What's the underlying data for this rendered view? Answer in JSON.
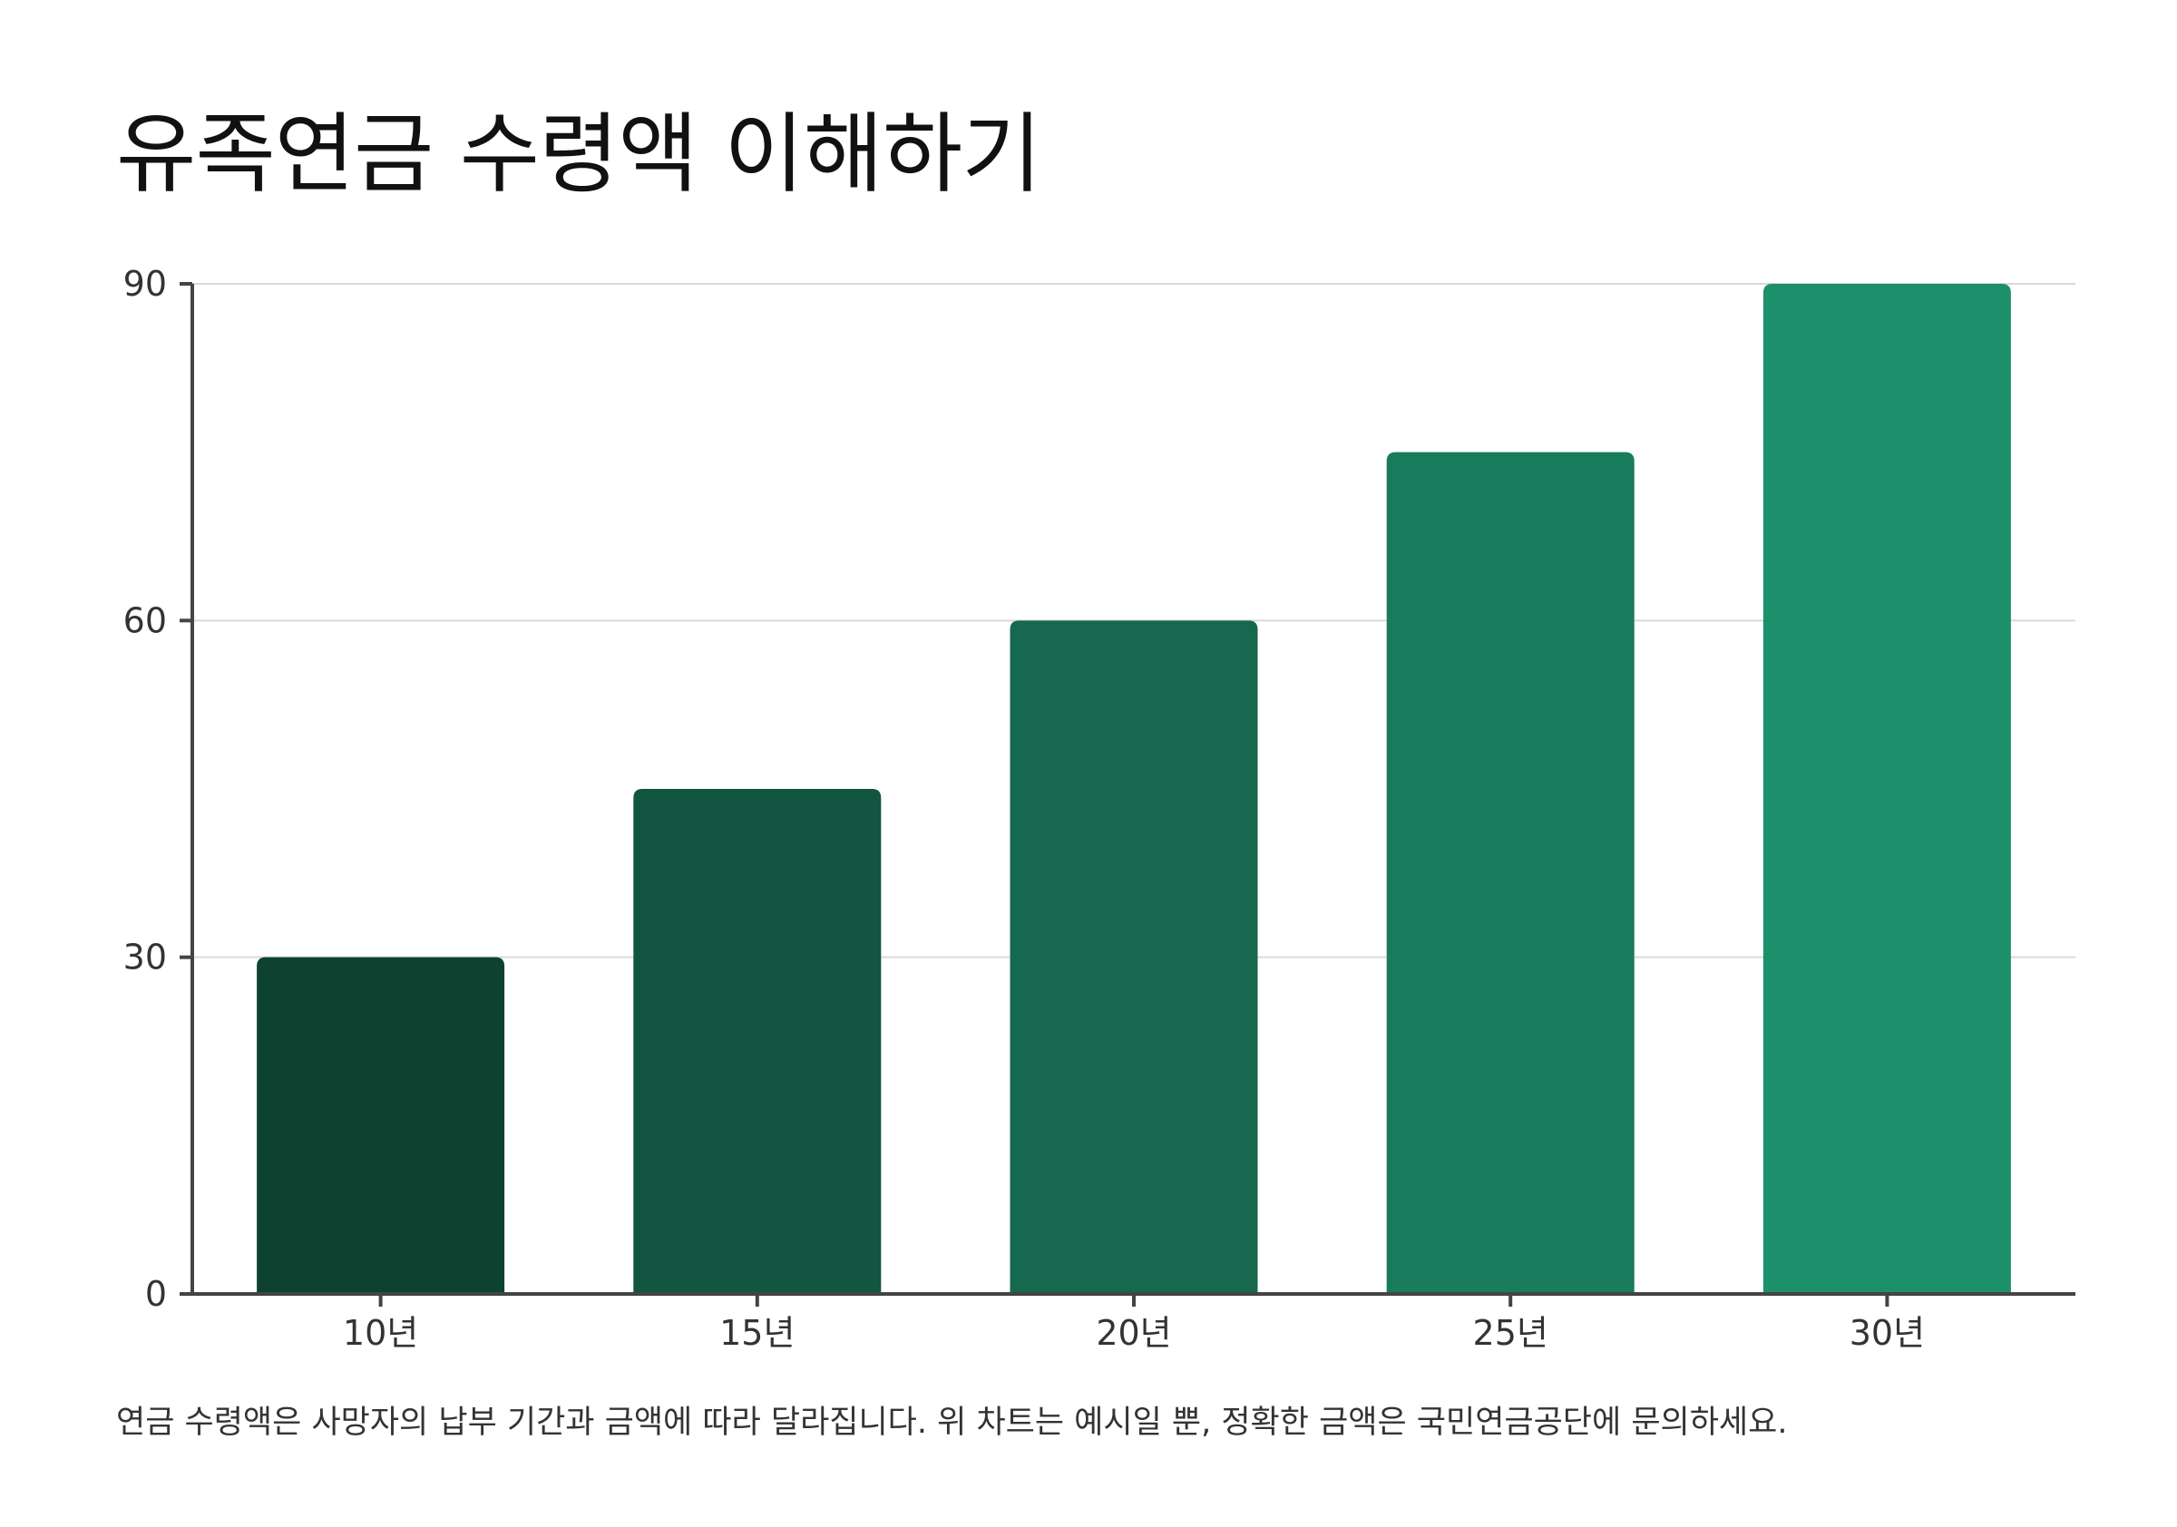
{
  "chart_data": {
    "type": "bar",
    "title": "유족연금 수령액 이해하기",
    "xlabel": "",
    "ylabel": "",
    "categories": [
      "10년",
      "15년",
      "20년",
      "25년",
      "30년"
    ],
    "values": [
      30,
      45,
      60,
      75,
      90
    ],
    "ylim": [
      0,
      90
    ],
    "yticks": [
      0,
      30,
      60,
      90
    ],
    "grid": true,
    "legend": "none",
    "colors": [
      "#0d4231",
      "#125540",
      "#16684f",
      "#187c5c",
      "#1c906a"
    ],
    "note": "연금 수령액은 사망자의 납부 기간과 금액에 따라 달라집니다. 위 차트는 예시일 뿐, 정확한 금액은 국민연금공단에 문의하세요."
  }
}
